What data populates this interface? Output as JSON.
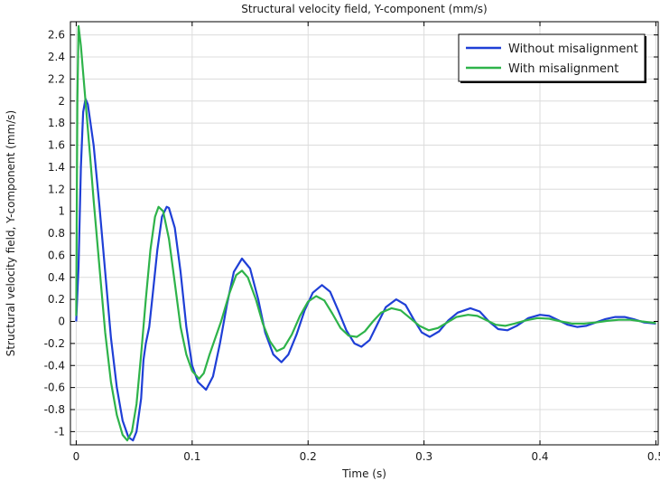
{
  "chart_data": {
    "type": "line",
    "title": "Structural velocity field, Y-component (mm/s)",
    "xlabel": "Time (s)",
    "ylabel": "Structural velocity field, Y-component (mm/s)",
    "xlim": [
      -0.005,
      0.502
    ],
    "ylim": [
      -1.12,
      2.72
    ],
    "xticks": [
      0,
      0.1,
      0.2,
      0.3,
      0.4,
      0.5
    ],
    "xtick_labels": [
      "0",
      "0.1",
      "0.2",
      "0.3",
      "0.4",
      "0.5"
    ],
    "yticks": [
      -1,
      -0.8,
      -0.6,
      -0.4,
      -0.2,
      0,
      0.2,
      0.4,
      0.6,
      0.8,
      1,
      1.2,
      1.4,
      1.6,
      1.8,
      2,
      2.2,
      2.4,
      2.6
    ],
    "ytick_labels": [
      "-1",
      "-0.8",
      "-0.6",
      "-0.4",
      "-0.2",
      "0",
      "0.2",
      "0.4",
      "0.6",
      "0.8",
      "1",
      "1.2",
      "1.4",
      "1.6",
      "1.8",
      "2",
      "2.2",
      "2.4",
      "2.6"
    ],
    "grid": true,
    "legend_position": "top-right",
    "series": [
      {
        "name": "Without misalignment",
        "color": "#1f3fd6",
        "points": [
          [
            0,
            0
          ],
          [
            0.002,
            0.5
          ],
          [
            0.004,
            1.4
          ],
          [
            0.006,
            1.9
          ],
          [
            0.008,
            2.02
          ],
          [
            0.01,
            1.97
          ],
          [
            0.015,
            1.6
          ],
          [
            0.02,
            1.05
          ],
          [
            0.025,
            0.45
          ],
          [
            0.03,
            -0.15
          ],
          [
            0.035,
            -0.6
          ],
          [
            0.04,
            -0.9
          ],
          [
            0.045,
            -1.05
          ],
          [
            0.049,
            -1.08
          ],
          [
            0.052,
            -1.0
          ],
          [
            0.056,
            -0.7
          ],
          [
            0.058,
            -0.35
          ],
          [
            0.06,
            -0.2
          ],
          [
            0.063,
            -0.05
          ],
          [
            0.066,
            0.25
          ],
          [
            0.07,
            0.65
          ],
          [
            0.074,
            0.95
          ],
          [
            0.078,
            1.04
          ],
          [
            0.08,
            1.03
          ],
          [
            0.085,
            0.85
          ],
          [
            0.09,
            0.45
          ],
          [
            0.095,
            -0.05
          ],
          [
            0.1,
            -0.4
          ],
          [
            0.105,
            -0.55
          ],
          [
            0.112,
            -0.62
          ],
          [
            0.118,
            -0.5
          ],
          [
            0.124,
            -0.2
          ],
          [
            0.13,
            0.15
          ],
          [
            0.136,
            0.45
          ],
          [
            0.143,
            0.57
          ],
          [
            0.15,
            0.48
          ],
          [
            0.157,
            0.2
          ],
          [
            0.163,
            -0.1
          ],
          [
            0.17,
            -0.3
          ],
          [
            0.177,
            -0.37
          ],
          [
            0.183,
            -0.3
          ],
          [
            0.19,
            -0.12
          ],
          [
            0.197,
            0.1
          ],
          [
            0.204,
            0.26
          ],
          [
            0.212,
            0.33
          ],
          [
            0.219,
            0.27
          ],
          [
            0.226,
            0.1
          ],
          [
            0.233,
            -0.08
          ],
          [
            0.24,
            -0.2
          ],
          [
            0.246,
            -0.23
          ],
          [
            0.253,
            -0.17
          ],
          [
            0.26,
            -0.02
          ],
          [
            0.267,
            0.13
          ],
          [
            0.276,
            0.2
          ],
          [
            0.284,
            0.15
          ],
          [
            0.291,
            0.02
          ],
          [
            0.298,
            -0.1
          ],
          [
            0.305,
            -0.14
          ],
          [
            0.313,
            -0.09
          ],
          [
            0.321,
            0.01
          ],
          [
            0.329,
            0.08
          ],
          [
            0.34,
            0.12
          ],
          [
            0.348,
            0.09
          ],
          [
            0.356,
            0.0
          ],
          [
            0.364,
            -0.07
          ],
          [
            0.372,
            -0.08
          ],
          [
            0.38,
            -0.04
          ],
          [
            0.39,
            0.03
          ],
          [
            0.4,
            0.06
          ],
          [
            0.408,
            0.05
          ],
          [
            0.416,
            0.01
          ],
          [
            0.424,
            -0.03
          ],
          [
            0.432,
            -0.05
          ],
          [
            0.44,
            -0.04
          ],
          [
            0.448,
            -0.01
          ],
          [
            0.456,
            0.02
          ],
          [
            0.465,
            0.04
          ],
          [
            0.473,
            0.04
          ],
          [
            0.481,
            0.02
          ],
          [
            0.49,
            -0.01
          ],
          [
            0.5,
            -0.02
          ]
        ]
      },
      {
        "name": "With misalignment",
        "color": "#2eb34a",
        "points": [
          [
            0,
            0.05
          ],
          [
            0.001,
            2.0
          ],
          [
            0.002,
            2.68
          ],
          [
            0.004,
            2.5
          ],
          [
            0.008,
            2.0
          ],
          [
            0.012,
            1.5
          ],
          [
            0.015,
            1.1
          ],
          [
            0.02,
            0.5
          ],
          [
            0.025,
            -0.1
          ],
          [
            0.03,
            -0.55
          ],
          [
            0.035,
            -0.85
          ],
          [
            0.04,
            -1.03
          ],
          [
            0.044,
            -1.08
          ],
          [
            0.048,
            -1.0
          ],
          [
            0.052,
            -0.75
          ],
          [
            0.056,
            -0.3
          ],
          [
            0.06,
            0.2
          ],
          [
            0.064,
            0.65
          ],
          [
            0.068,
            0.95
          ],
          [
            0.071,
            1.04
          ],
          [
            0.075,
            1.0
          ],
          [
            0.08,
            0.75
          ],
          [
            0.085,
            0.35
          ],
          [
            0.09,
            -0.05
          ],
          [
            0.095,
            -0.3
          ],
          [
            0.1,
            -0.45
          ],
          [
            0.106,
            -0.52
          ],
          [
            0.11,
            -0.47
          ],
          [
            0.115,
            -0.3
          ],
          [
            0.12,
            -0.15
          ],
          [
            0.125,
            0.0
          ],
          [
            0.132,
            0.25
          ],
          [
            0.138,
            0.42
          ],
          [
            0.143,
            0.46
          ],
          [
            0.148,
            0.4
          ],
          [
            0.155,
            0.2
          ],
          [
            0.161,
            -0.02
          ],
          [
            0.167,
            -0.18
          ],
          [
            0.173,
            -0.27
          ],
          [
            0.179,
            -0.24
          ],
          [
            0.186,
            -0.12
          ],
          [
            0.193,
            0.05
          ],
          [
            0.2,
            0.18
          ],
          [
            0.207,
            0.23
          ],
          [
            0.214,
            0.19
          ],
          [
            0.221,
            0.07
          ],
          [
            0.228,
            -0.06
          ],
          [
            0.235,
            -0.13
          ],
          [
            0.242,
            -0.14
          ],
          [
            0.249,
            -0.09
          ],
          [
            0.256,
            0.0
          ],
          [
            0.263,
            0.08
          ],
          [
            0.272,
            0.12
          ],
          [
            0.28,
            0.1
          ],
          [
            0.288,
            0.03
          ],
          [
            0.296,
            -0.04
          ],
          [
            0.304,
            -0.08
          ],
          [
            0.312,
            -0.06
          ],
          [
            0.32,
            -0.01
          ],
          [
            0.328,
            0.04
          ],
          [
            0.338,
            0.06
          ],
          [
            0.346,
            0.05
          ],
          [
            0.354,
            0.01
          ],
          [
            0.362,
            -0.03
          ],
          [
            0.37,
            -0.04
          ],
          [
            0.378,
            -0.02
          ],
          [
            0.388,
            0.01
          ],
          [
            0.398,
            0.03
          ],
          [
            0.408,
            0.025
          ],
          [
            0.418,
            0.0
          ],
          [
            0.428,
            -0.02
          ],
          [
            0.438,
            -0.02
          ],
          [
            0.448,
            -0.01
          ],
          [
            0.458,
            0.005
          ],
          [
            0.468,
            0.015
          ],
          [
            0.478,
            0.015
          ],
          [
            0.488,
            0.0
          ],
          [
            0.5,
            -0.015
          ]
        ]
      }
    ]
  }
}
